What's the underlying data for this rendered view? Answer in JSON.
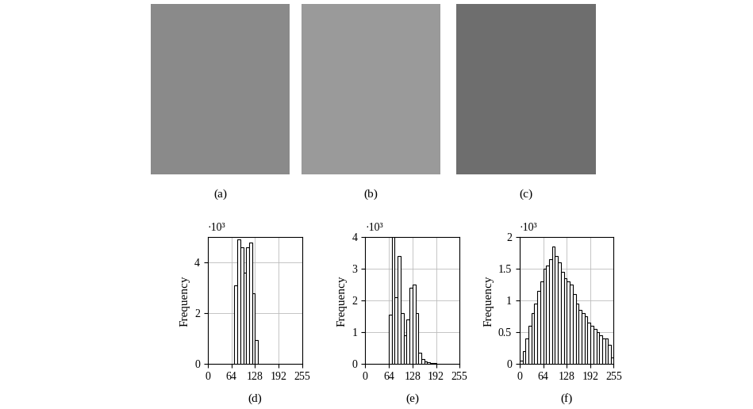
{
  "images": [
    {
      "caption": "(a)"
    },
    {
      "caption": "(b)"
    },
    {
      "caption": "(c)"
    }
  ],
  "chart_data": [
    {
      "type": "histogram",
      "caption": "(d)",
      "y_label": "Frequency",
      "annotations": [
        "·10³"
      ],
      "bins": [
        72,
        80,
        88,
        96,
        104,
        112,
        120,
        128,
        136
      ],
      "counts": [
        3.1,
        4.9,
        4.6,
        3.6,
        4.6,
        4.8,
        2.8,
        0.95
      ],
      "xlim": [
        0,
        255
      ],
      "xticks": [
        0,
        64,
        128,
        192,
        255
      ],
      "ylim": [
        0,
        5
      ],
      "yticks": [
        0,
        2,
        4
      ],
      "grid": true,
      "color": "#ffffff"
    },
    {
      "type": "histogram",
      "caption": "(e)",
      "y_label": "Frequency",
      "annotations": [
        "·10³"
      ],
      "bins": [
        64,
        72,
        80,
        88,
        96,
        104,
        112,
        120,
        128,
        136,
        144,
        152,
        160,
        168,
        176,
        184,
        192
      ],
      "counts": [
        1.55,
        4.0,
        2.1,
        3.4,
        1.6,
        0.9,
        1.4,
        2.4,
        2.5,
        1.6,
        0.35,
        0.15,
        0.07,
        0.05,
        0.03,
        0.02
      ],
      "xlim": [
        0,
        255
      ],
      "xticks": [
        0,
        64,
        128,
        192,
        255
      ],
      "ylim": [
        0,
        4
      ],
      "yticks": [
        0,
        1,
        2,
        3,
        4
      ],
      "grid": true,
      "color": "#ffffff"
    },
    {
      "type": "histogram",
      "caption": "(f)",
      "y_label": "Frequency",
      "annotations": [
        "·10³"
      ],
      "bins": [
        0,
        8,
        16,
        24,
        32,
        40,
        48,
        56,
        64,
        72,
        80,
        88,
        96,
        104,
        112,
        120,
        128,
        136,
        144,
        152,
        160,
        168,
        176,
        184,
        192,
        200,
        208,
        216,
        224,
        232,
        240,
        248,
        256
      ],
      "counts": [
        0.05,
        0.2,
        0.4,
        0.6,
        0.8,
        0.95,
        1.15,
        1.3,
        1.5,
        1.55,
        1.65,
        1.85,
        1.7,
        1.6,
        1.45,
        1.35,
        1.3,
        1.25,
        1.1,
        0.95,
        0.85,
        0.8,
        0.75,
        0.65,
        0.6,
        0.55,
        0.5,
        0.45,
        0.4,
        0.4,
        0.3,
        0.1
      ],
      "xlim": [
        0,
        255
      ],
      "xticks": [
        0,
        64,
        128,
        192,
        255
      ],
      "ylim": [
        0,
        2
      ],
      "yticks": [
        0,
        0.5,
        1,
        1.5,
        2
      ],
      "grid": true,
      "color": "#ffffff"
    }
  ]
}
